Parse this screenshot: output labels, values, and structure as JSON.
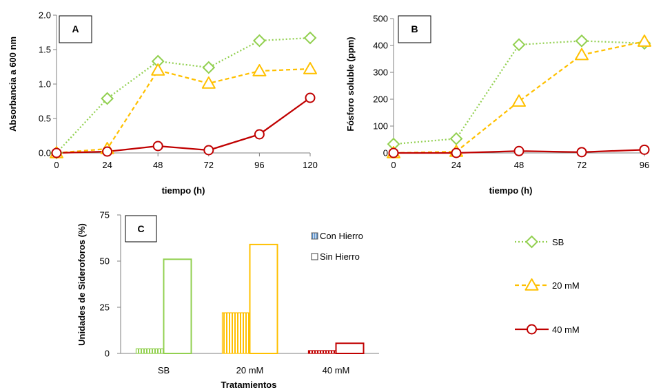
{
  "colors": {
    "SB": "#92d050",
    "20 mM": "#ffc000",
    "40 mM": "#c00000",
    "axis": "#7f7f7f"
  },
  "legend": {
    "series": [
      {
        "name": "SB",
        "marker": "diamond",
        "dash": "dotted"
      },
      {
        "name": "20 mM",
        "marker": "triangle",
        "dash": "dashed"
      },
      {
        "name": "40 mM",
        "marker": "circle",
        "dash": "solid"
      }
    ]
  },
  "chart_data": [
    {
      "panel": "A",
      "type": "line",
      "xlabel": "tiempo (h)",
      "ylabel": "Absorbancia a 600 nm",
      "x": [
        0,
        24,
        48,
        72,
        96,
        120
      ],
      "xticks": [
        "0",
        "24",
        "48",
        "72",
        "96",
        "120"
      ],
      "xlim": [
        0,
        120
      ],
      "ylim": [
        0,
        2.0
      ],
      "yticks": [
        "0.0",
        "0.5",
        "1.0",
        "1.5",
        "2.0"
      ],
      "ytick_values": [
        0,
        0.5,
        1.0,
        1.5,
        2.0
      ],
      "series": [
        {
          "name": "SB",
          "values": [
            0.0,
            0.79,
            1.33,
            1.24,
            1.63,
            1.67
          ]
        },
        {
          "name": "20 mM",
          "values": [
            0.0,
            0.06,
            1.2,
            1.01,
            1.19,
            1.22
          ]
        },
        {
          "name": "40 mM",
          "values": [
            0.0,
            0.02,
            0.1,
            0.04,
            0.27,
            0.8
          ]
        }
      ]
    },
    {
      "panel": "B",
      "type": "line",
      "xlabel": "tiempo (h)",
      "ylabel": "Fósforo soluble (ppm)",
      "x": [
        0,
        24,
        48,
        72,
        96
      ],
      "xticks": [
        "0",
        "24",
        "48",
        "72",
        "96"
      ],
      "xlim": [
        0,
        96
      ],
      "ylim": [
        0,
        500
      ],
      "yticks": [
        "0",
        "100",
        "200",
        "300",
        "400",
        "500"
      ],
      "ytick_values": [
        0,
        100,
        200,
        300,
        400,
        500
      ],
      "series": [
        {
          "name": "SB",
          "values": [
            33,
            53,
            403,
            417,
            408
          ]
        },
        {
          "name": "20 mM",
          "values": [
            0,
            5,
            192,
            365,
            415
          ]
        },
        {
          "name": "40 mM",
          "values": [
            0,
            0,
            7,
            3,
            12
          ]
        }
      ]
    },
    {
      "panel": "C",
      "type": "bar",
      "xlabel": "Tratamientos",
      "ylabel": "Unidades de Sideroforos (%)",
      "categories": [
        "SB",
        "20 mM",
        "40 mM"
      ],
      "ylim": [
        0,
        75
      ],
      "yticks": [
        "0",
        "25",
        "50",
        "75"
      ],
      "ytick_values": [
        0,
        25,
        50,
        75
      ],
      "series": [
        {
          "name": "Con Hierro",
          "pattern": "vertical-stripes",
          "values": [
            2.5,
            22,
            1.5
          ]
        },
        {
          "name": "Sin Hierro",
          "pattern": "hollow",
          "values": [
            51,
            59,
            5.5
          ]
        }
      ]
    }
  ]
}
